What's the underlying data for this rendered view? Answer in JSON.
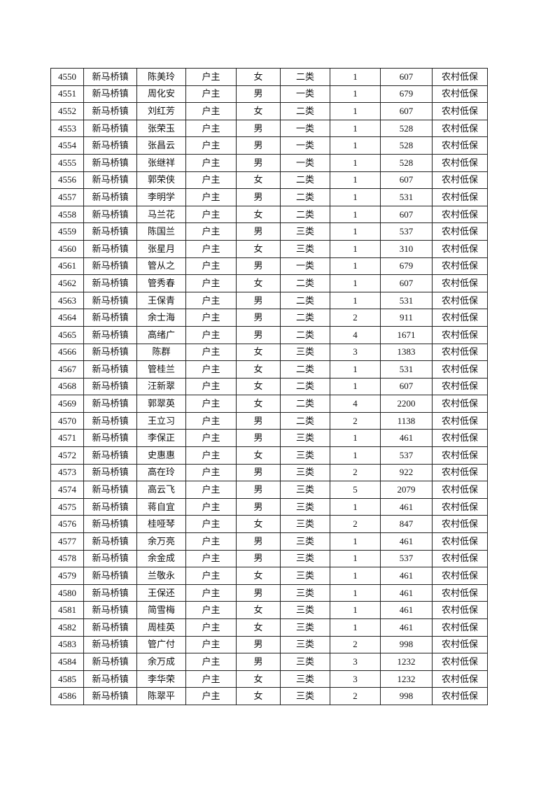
{
  "rows": [
    [
      "4550",
      "新马桥镇",
      "陈美玲",
      "户主",
      "女",
      "二类",
      "1",
      "607",
      "农村低保"
    ],
    [
      "4551",
      "新马桥镇",
      "周化安",
      "户主",
      "男",
      "一类",
      "1",
      "679",
      "农村低保"
    ],
    [
      "4552",
      "新马桥镇",
      "刘红芳",
      "户主",
      "女",
      "二类",
      "1",
      "607",
      "农村低保"
    ],
    [
      "4553",
      "新马桥镇",
      "张荣玉",
      "户主",
      "男",
      "一类",
      "1",
      "528",
      "农村低保"
    ],
    [
      "4554",
      "新马桥镇",
      "张昌云",
      "户主",
      "男",
      "一类",
      "1",
      "528",
      "农村低保"
    ],
    [
      "4555",
      "新马桥镇",
      "张继祥",
      "户主",
      "男",
      "一类",
      "1",
      "528",
      "农村低保"
    ],
    [
      "4556",
      "新马桥镇",
      "郭荣侠",
      "户主",
      "女",
      "二类",
      "1",
      "607",
      "农村低保"
    ],
    [
      "4557",
      "新马桥镇",
      "李明学",
      "户主",
      "男",
      "二类",
      "1",
      "531",
      "农村低保"
    ],
    [
      "4558",
      "新马桥镇",
      "马兰花",
      "户主",
      "女",
      "二类",
      "1",
      "607",
      "农村低保"
    ],
    [
      "4559",
      "新马桥镇",
      "陈国兰",
      "户主",
      "男",
      "三类",
      "1",
      "537",
      "农村低保"
    ],
    [
      "4560",
      "新马桥镇",
      "张星月",
      "户主",
      "女",
      "三类",
      "1",
      "310",
      "农村低保"
    ],
    [
      "4561",
      "新马桥镇",
      "管从之",
      "户主",
      "男",
      "一类",
      "1",
      "679",
      "农村低保"
    ],
    [
      "4562",
      "新马桥镇",
      "管秀春",
      "户主",
      "女",
      "二类",
      "1",
      "607",
      "农村低保"
    ],
    [
      "4563",
      "新马桥镇",
      "王保青",
      "户主",
      "男",
      "二类",
      "1",
      "531",
      "农村低保"
    ],
    [
      "4564",
      "新马桥镇",
      "余士海",
      "户主",
      "男",
      "二类",
      "2",
      "911",
      "农村低保"
    ],
    [
      "4565",
      "新马桥镇",
      "高绪广",
      "户主",
      "男",
      "二类",
      "4",
      "1671",
      "农村低保"
    ],
    [
      "4566",
      "新马桥镇",
      "陈群",
      "户主",
      "女",
      "三类",
      "3",
      "1383",
      "农村低保"
    ],
    [
      "4567",
      "新马桥镇",
      "管桂兰",
      "户主",
      "女",
      "二类",
      "1",
      "531",
      "农村低保"
    ],
    [
      "4568",
      "新马桥镇",
      "汪新翠",
      "户主",
      "女",
      "二类",
      "1",
      "607",
      "农村低保"
    ],
    [
      "4569",
      "新马桥镇",
      "郭翠英",
      "户主",
      "女",
      "二类",
      "4",
      "2200",
      "农村低保"
    ],
    [
      "4570",
      "新马桥镇",
      "王立习",
      "户主",
      "男",
      "二类",
      "2",
      "1138",
      "农村低保"
    ],
    [
      "4571",
      "新马桥镇",
      "李保正",
      "户主",
      "男",
      "三类",
      "1",
      "461",
      "农村低保"
    ],
    [
      "4572",
      "新马桥镇",
      "史惠惠",
      "户主",
      "女",
      "三类",
      "1",
      "537",
      "农村低保"
    ],
    [
      "4573",
      "新马桥镇",
      "高在玲",
      "户主",
      "男",
      "三类",
      "2",
      "922",
      "农村低保"
    ],
    [
      "4574",
      "新马桥镇",
      "高云飞",
      "户主",
      "男",
      "三类",
      "5",
      "2079",
      "农村低保"
    ],
    [
      "4575",
      "新马桥镇",
      "蒋自宜",
      "户主",
      "男",
      "三类",
      "1",
      "461",
      "农村低保"
    ],
    [
      "4576",
      "新马桥镇",
      "桂哑琴",
      "户主",
      "女",
      "三类",
      "2",
      "847",
      "农村低保"
    ],
    [
      "4577",
      "新马桥镇",
      "余万亮",
      "户主",
      "男",
      "三类",
      "1",
      "461",
      "农村低保"
    ],
    [
      "4578",
      "新马桥镇",
      "余金成",
      "户主",
      "男",
      "三类",
      "1",
      "537",
      "农村低保"
    ],
    [
      "4579",
      "新马桥镇",
      "兰敬永",
      "户主",
      "女",
      "三类",
      "1",
      "461",
      "农村低保"
    ],
    [
      "4580",
      "新马桥镇",
      "王保还",
      "户主",
      "男",
      "三类",
      "1",
      "461",
      "农村低保"
    ],
    [
      "4581",
      "新马桥镇",
      "简雪梅",
      "户主",
      "女",
      "三类",
      "1",
      "461",
      "农村低保"
    ],
    [
      "4582",
      "新马桥镇",
      "周桂英",
      "户主",
      "女",
      "三类",
      "1",
      "461",
      "农村低保"
    ],
    [
      "4583",
      "新马桥镇",
      "管广付",
      "户主",
      "男",
      "三类",
      "2",
      "998",
      "农村低保"
    ],
    [
      "4584",
      "新马桥镇",
      "余万成",
      "户主",
      "男",
      "三类",
      "3",
      "1232",
      "农村低保"
    ],
    [
      "4585",
      "新马桥镇",
      "李华荣",
      "户主",
      "女",
      "三类",
      "3",
      "1232",
      "农村低保"
    ],
    [
      "4586",
      "新马桥镇",
      "陈翠平",
      "户主",
      "女",
      "三类",
      "2",
      "998",
      "农村低保"
    ]
  ]
}
